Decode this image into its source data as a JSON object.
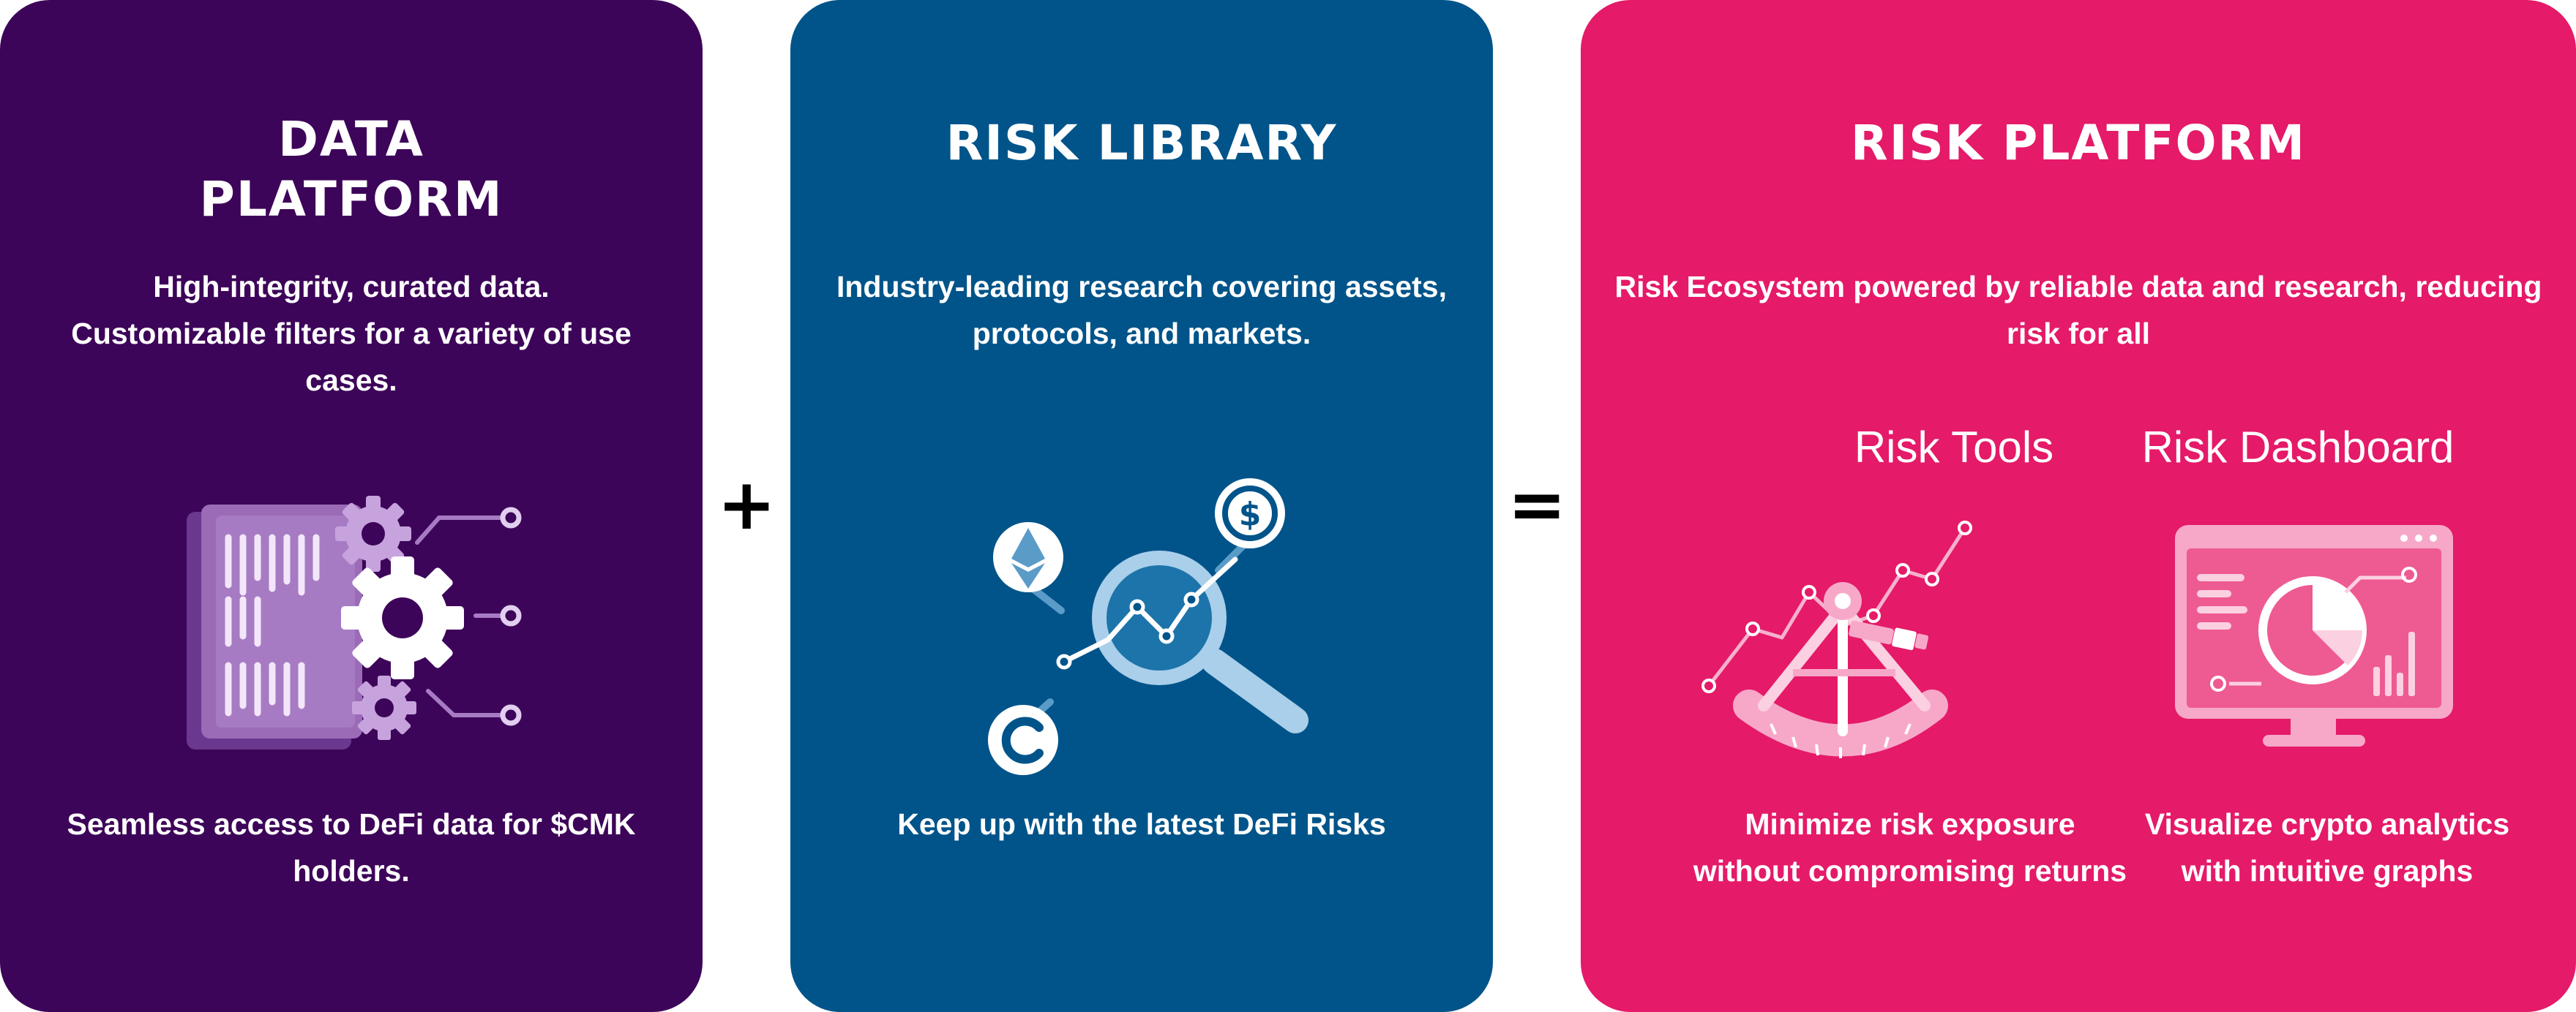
{
  "colors": {
    "data_platform_bg": "#3d0559",
    "risk_library_bg": "#00548a",
    "risk_platform_bg": "#e51a69"
  },
  "operators": {
    "plus": "+",
    "equals": "="
  },
  "data_platform": {
    "title_line1": "DATA",
    "title_line2": "PLATFORM",
    "desc_line1": "High-integrity, curated data.",
    "desc_line2": "Customizable filters for a variety of use",
    "desc_line3": "cases.",
    "footer_line1": "Seamless access to DeFi data for $CMK",
    "footer_line2": "holders.",
    "illustration_icon": "data-server-gears-icon"
  },
  "risk_library": {
    "title": "RISK LIBRARY",
    "desc_line1": "Industry-leading research covering assets,",
    "desc_line2": "protocols, and markets.",
    "footer": "Keep up with the latest DeFi Risks",
    "illustration_icon": "magnifier-crypto-icon"
  },
  "risk_platform": {
    "title": "RISK PLATFORM",
    "desc_line1": "Risk Ecosystem powered by reliable data and research, reducing",
    "desc_line2": "risk for all",
    "tools": {
      "title": "Risk Tools",
      "caption_line1": "Minimize risk exposure",
      "caption_line2": "without compromising returns",
      "illustration_icon": "sextant-chart-icon"
    },
    "dashboard": {
      "title": "Risk Dashboard",
      "caption_line1": "Visualize crypto analytics",
      "caption_line2": "with intuitive graphs",
      "illustration_icon": "monitor-pie-chart-icon"
    }
  }
}
